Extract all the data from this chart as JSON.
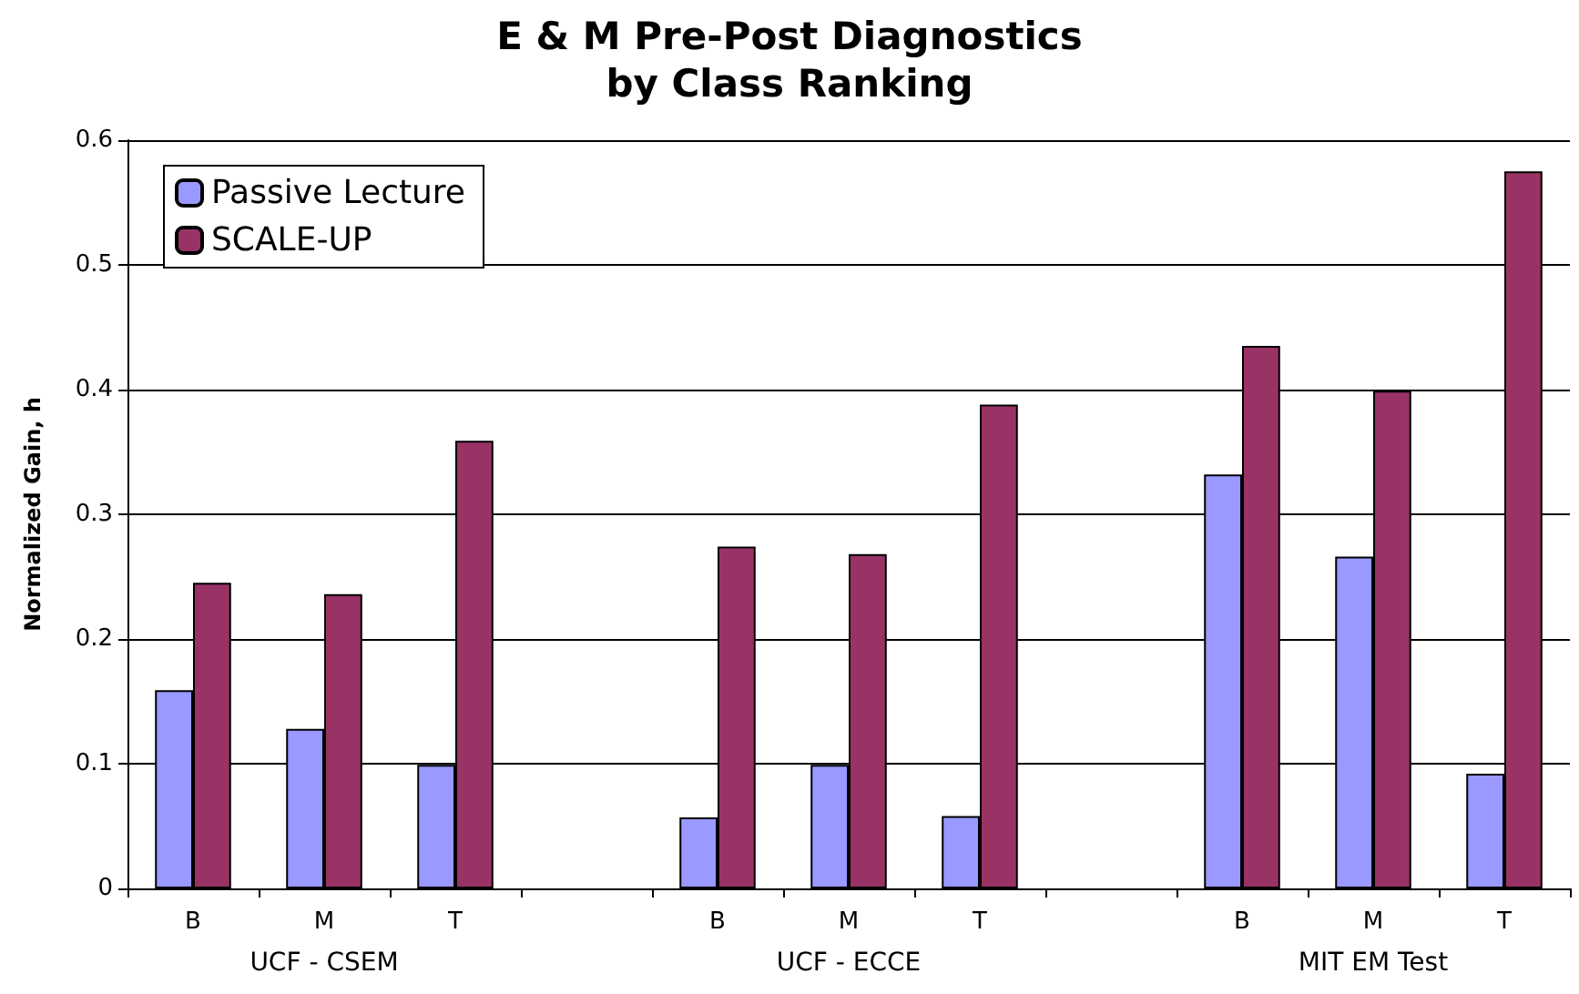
{
  "chart_data": {
    "type": "bar",
    "title": "E & M Pre-Post Diagnostics\nby Class Ranking",
    "ylabel": "Normalized Gain, h",
    "categories": [
      "B",
      "M",
      "T",
      null,
      "B",
      "M",
      "T",
      null,
      "B",
      "M",
      "T"
    ],
    "series": [
      {
        "name": "Passive Lecture",
        "color": "#9999ff",
        "values": [
          0.159,
          0.128,
          0.099,
          null,
          0.057,
          0.099,
          0.058,
          null,
          0.332,
          0.266,
          0.092
        ]
      },
      {
        "name": "SCALE-UP",
        "color": "#993366",
        "values": [
          0.245,
          0.236,
          0.359,
          null,
          0.274,
          0.268,
          0.388,
          null,
          0.435,
          0.399,
          0.575
        ]
      }
    ],
    "annotations": [
      "UCF - CSEM",
      "UCF - ECCE",
      "MIT EM Test"
    ],
    "ylim": [
      0,
      0.6
    ],
    "yticks": [
      0,
      0.1,
      0.2,
      0.3,
      0.4,
      0.5,
      0.6
    ],
    "grid": "y",
    "legend": "top left"
  }
}
